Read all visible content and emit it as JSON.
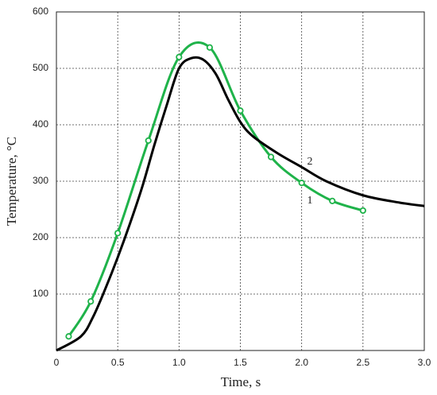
{
  "chart_data": {
    "type": "line",
    "xlabel": "Time, s",
    "ylabel": "Temperature, °C",
    "xlim": [
      0,
      3
    ],
    "ylim": [
      0,
      600
    ],
    "xticks": [
      0,
      0.5,
      {
        "value": 1,
        "label": "1.0"
      },
      1.5,
      {
        "value": 2,
        "label": "2.0"
      },
      2.5,
      {
        "value": 3,
        "label": "3.0"
      }
    ],
    "yticks": [
      100,
      200,
      300,
      400,
      500,
      600
    ],
    "grid": true,
    "series": [
      {
        "name": "1",
        "color": "#1fb34a",
        "markers": true,
        "x": [
          0.1,
          0.28,
          0.5,
          0.75,
          1.0,
          1.25,
          1.5,
          1.75,
          2.0,
          2.25,
          2.5
        ],
        "values": [
          25,
          87,
          208,
          372,
          520,
          537,
          425,
          343,
          297,
          265,
          248
        ]
      },
      {
        "name": "2",
        "color": "#000000",
        "markers": false,
        "x": [
          0,
          0.2,
          0.3,
          0.4,
          0.5,
          0.6,
          0.7,
          0.8,
          0.9,
          1.0,
          1.1,
          1.2,
          1.3,
          1.4,
          1.5,
          1.6,
          1.8,
          2.0,
          2.2,
          2.5,
          2.8,
          3.0
        ],
        "values": [
          0,
          25,
          60,
          110,
          165,
          225,
          290,
          365,
          435,
          500,
          518,
          515,
          490,
          445,
          405,
          380,
          350,
          325,
          300,
          275,
          262,
          256
        ]
      }
    ]
  }
}
